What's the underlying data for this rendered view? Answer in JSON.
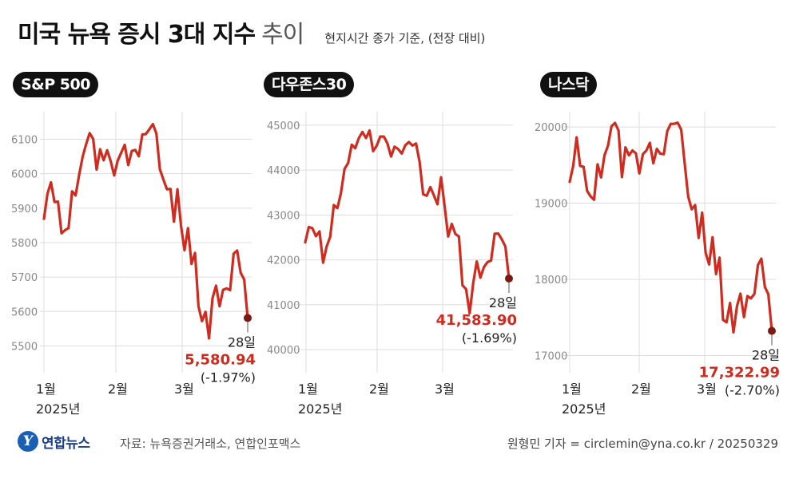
{
  "header": {
    "title": "미국 뉴욕 증시 3대 지수",
    "title_light": "추이",
    "subtitle": "현지시간 종가 기준, (전장 대비)"
  },
  "footer": {
    "logo_text": "연합뉴스",
    "source": "자료: 뉴욕증권거래소, 연합인포맥스",
    "credit": "원형민 기자 = circlemin@yna.co.kr / 20250329"
  },
  "colors": {
    "line": "#d12a1e",
    "end_dot": "#7a1a12",
    "grid": "#dddddd"
  },
  "chart_data": [
    {
      "type": "line",
      "title": "S&P 500",
      "x_labels": [
        "1월\n2025년",
        "2월",
        "3월"
      ],
      "ylim": [
        5450,
        6180
      ],
      "yticks": [
        5500,
        5600,
        5700,
        5800,
        5900,
        6000,
        6100
      ],
      "y_tick_labels": [
        "5500",
        "5600",
        "5700",
        "5800",
        "5900",
        "6000",
        "6100"
      ],
      "grid": true,
      "values": [
        5869,
        5942,
        5975,
        5918,
        5919,
        5827,
        5836,
        5842,
        5949,
        5937,
        5996,
        6049,
        6086,
        6118,
        6101,
        6012,
        6071,
        6039,
        6068,
        6037,
        5995,
        6038,
        6061,
        6084,
        6025,
        6066,
        6069,
        6051,
        6114,
        6115,
        6129,
        6144,
        6117,
        6013,
        5983,
        5955,
        5956,
        5861,
        5955,
        5850,
        5778,
        5842,
        5738,
        5770,
        5615,
        5572,
        5599,
        5522,
        5639,
        5675,
        5615,
        5663,
        5667,
        5662,
        5768,
        5777,
        5712,
        5693,
        5581
      ],
      "last_point": {
        "day": "28일",
        "value": "5,580.94",
        "change": "(-1.97%)"
      }
    },
    {
      "type": "line",
      "title": "다우존스30",
      "x_labels": [
        "1월\n2025년",
        "2월",
        "3월"
      ],
      "ylim": [
        39700,
        45300
      ],
      "yticks": [
        40000,
        41000,
        42000,
        43000,
        44000,
        45000
      ],
      "y_tick_labels": [
        "40000",
        "41000",
        "42000",
        "43000",
        "44000",
        "45000"
      ],
      "grid": true,
      "values": [
        42392,
        42732,
        42706,
        42528,
        42635,
        41938,
        42297,
        42518,
        43221,
        43153,
        43488,
        44025,
        44156,
        44565,
        44487,
        44713,
        44850,
        44713,
        44883,
        44421,
        44544,
        44747,
        44747,
        44593,
        44303,
        44521,
        44470,
        44368,
        44556,
        44627,
        44546,
        44593,
        44176,
        43462,
        43428,
        43621,
        43433,
        43240,
        43841,
        43191,
        42521,
        42801,
        42579,
        42520,
        41433,
        41350,
        40813,
        41488,
        41964,
        41604,
        41841,
        41953,
        41985,
        42583,
        42587,
        42455,
        42300,
        41584
      ],
      "last_point": {
        "day": "28일",
        "value": "41,583.90",
        "change": "(-1.69%)"
      }
    },
    {
      "type": "line",
      "title": "나스닥",
      "x_labels": [
        "1월\n2025년",
        "2월",
        "3월"
      ],
      "ylim": [
        16900,
        20200
      ],
      "yticks": [
        17000,
        18000,
        19000,
        20000
      ],
      "y_tick_labels": [
        "17000",
        "18000",
        "19000",
        "20000"
      ],
      "grid": true,
      "values": [
        19280,
        19490,
        19864,
        19489,
        19478,
        19162,
        19088,
        19044,
        19511,
        19338,
        19630,
        19756,
        20009,
        20053,
        19954,
        19342,
        19733,
        19627,
        19692,
        19654,
        19391,
        19643,
        19692,
        19791,
        19523,
        19714,
        19649,
        19643,
        19945,
        20041,
        20042,
        20056,
        19962,
        19524,
        19087,
        18920,
        18974,
        18544,
        18876,
        18350,
        18196,
        18553,
        18069,
        18285,
        17468,
        17436,
        17690,
        17304,
        17648,
        17812,
        17504,
        17781,
        17750,
        17808,
        18189,
        18271,
        17899,
        17804,
        17323
      ],
      "last_point": {
        "day": "28일",
        "value": "17,322.99",
        "change": "(-2.70%)"
      }
    }
  ]
}
